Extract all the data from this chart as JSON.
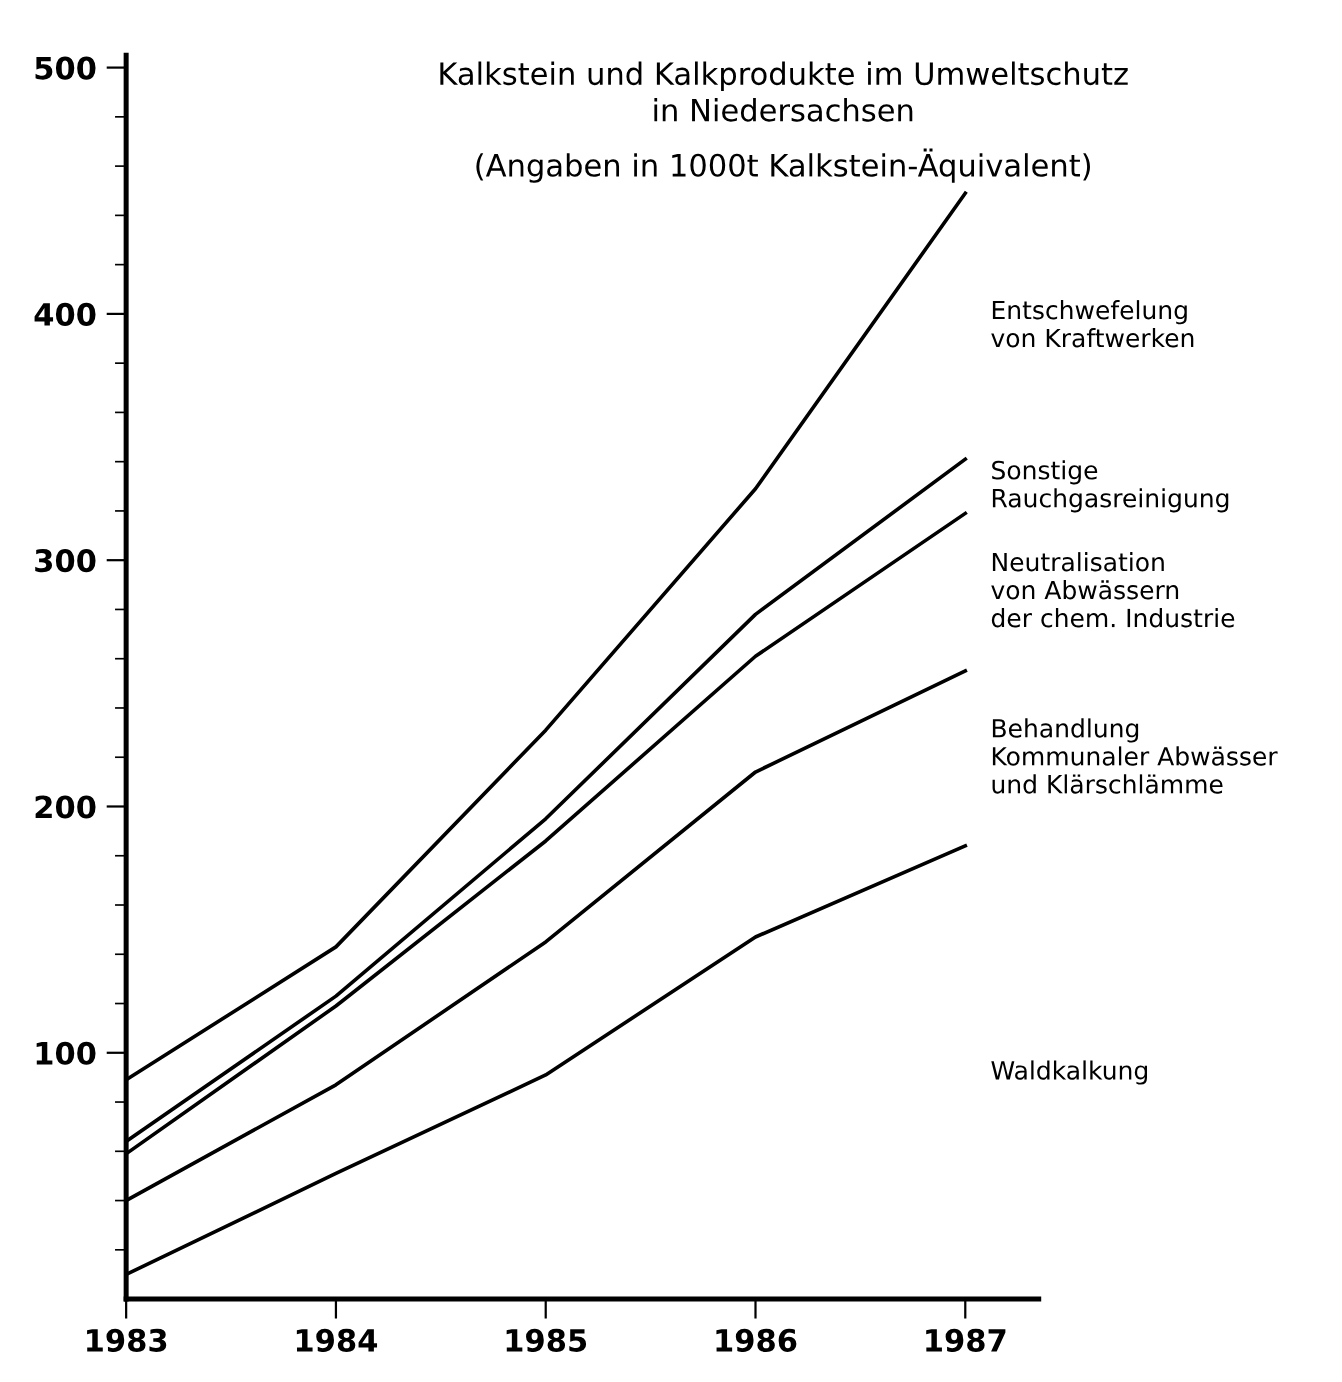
{
  "chart_data": {
    "type": "line",
    "title": "Kalkstein und Kalkprodukte im Umweltschutz\nin Niedersachsen",
    "subtitle": "(Angaben in 1000t Kalkstein-Äquivalent)",
    "x": [
      1983,
      1984,
      1985,
      1986,
      1987
    ],
    "series": [
      {
        "name": "Entschwefelung\nvon Kraftwerken",
        "color": "#000000",
        "values": [
          89,
          143,
          231,
          329,
          449
        ]
      },
      {
        "name": "Sonstige\nRauchgasreinigung",
        "color": "#000000",
        "values": [
          64,
          123,
          195,
          278,
          341
        ]
      },
      {
        "name": "Neutralisation\nvon Abwässern\nder chem. Industrie",
        "color": "#000000",
        "values": [
          59,
          119,
          186,
          261,
          319
        ]
      },
      {
        "name": "Behandlung\nKommunaler Abwässer\nund Klärschlämme",
        "color": "#000000",
        "values": [
          40,
          87,
          145,
          214,
          255
        ]
      },
      {
        "name": "Waldkalkung",
        "color": "#000000",
        "values": [
          10,
          51,
          91,
          147,
          184
        ]
      }
    ],
    "xlim": [
      1983,
      1987.35
    ],
    "xticks": [
      1983,
      1984,
      1985,
      1986,
      1987
    ],
    "ylim": [
      0,
      505
    ],
    "yticks": [
      {
        "value": 20,
        "label": null
      },
      {
        "value": 40,
        "label": null
      },
      {
        "value": 60,
        "label": null
      },
      {
        "value": 80,
        "label": null
      },
      100,
      {
        "value": 120,
        "label": null
      },
      {
        "value": 140,
        "label": null
      },
      {
        "value": 160,
        "label": null
      },
      {
        "value": 180,
        "label": null
      },
      200,
      {
        "value": 220,
        "label": null
      },
      {
        "value": 240,
        "label": null
      },
      {
        "value": 260,
        "label": null
      },
      {
        "value": 280,
        "label": null
      },
      300,
      {
        "value": 320,
        "label": null
      },
      {
        "value": 340,
        "label": null
      },
      {
        "value": 360,
        "label": null
      },
      {
        "value": 380,
        "label": null
      },
      400,
      {
        "value": 420,
        "label": null
      },
      {
        "value": 440,
        "label": null
      },
      {
        "value": 460,
        "label": null
      },
      {
        "value": 480,
        "label": null
      },
      500
    ],
    "grid": false,
    "legend": false,
    "marker": "none",
    "line_style": "solid"
  }
}
